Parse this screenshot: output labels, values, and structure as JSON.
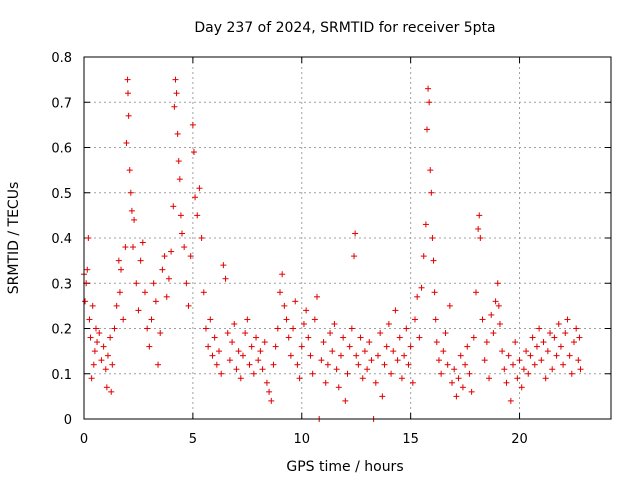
{
  "chart_data": {
    "type": "scatter",
    "title": "Day 237 of 2024, SRMTID for receiver 5pta",
    "xlabel": "GPS time / hours",
    "ylabel": "SRMTID / TECUs",
    "xlim": [
      0,
      24.2
    ],
    "ylim": [
      0,
      0.8
    ],
    "grid": true,
    "marker": "+",
    "marker_color": "#e00000",
    "xticks": [
      0,
      5,
      10,
      15,
      20
    ],
    "xtick_labels": [
      "0",
      "5",
      "10",
      "15",
      "20"
    ],
    "yticks": [
      0,
      0.1,
      0.2,
      0.3,
      0.4,
      0.5,
      0.6,
      0.7,
      0.8
    ],
    "ytick_labels": [
      "0",
      "0.1",
      "0.2",
      "0.3",
      "0.4",
      "0.5",
      "0.6",
      "0.7",
      "0.8"
    ],
    "series": [
      {
        "name": "SRMTID",
        "points": [
          [
            0.0,
            0.32
          ],
          [
            0.05,
            0.26
          ],
          [
            0.1,
            0.3
          ],
          [
            0.15,
            0.33
          ],
          [
            0.2,
            0.4
          ],
          [
            0.25,
            0.22
          ],
          [
            0.3,
            0.18
          ],
          [
            0.35,
            0.09
          ],
          [
            0.4,
            0.25
          ],
          [
            0.45,
            0.12
          ],
          [
            0.5,
            0.15
          ],
          [
            0.55,
            0.2
          ],
          [
            0.6,
            0.17
          ],
          [
            0.7,
            0.19
          ],
          [
            0.8,
            0.13
          ],
          [
            0.9,
            0.16
          ],
          [
            1.0,
            0.11
          ],
          [
            1.05,
            0.07
          ],
          [
            1.1,
            0.14
          ],
          [
            1.2,
            0.18
          ],
          [
            1.25,
            0.06
          ],
          [
            1.3,
            0.12
          ],
          [
            1.4,
            0.2
          ],
          [
            1.5,
            0.25
          ],
          [
            1.6,
            0.35
          ],
          [
            1.65,
            0.28
          ],
          [
            1.7,
            0.33
          ],
          [
            1.8,
            0.22
          ],
          [
            1.9,
            0.38
          ],
          [
            1.95,
            0.61
          ],
          [
            2.0,
            0.75
          ],
          [
            2.02,
            0.72
          ],
          [
            2.05,
            0.67
          ],
          [
            2.1,
            0.55
          ],
          [
            2.15,
            0.5
          ],
          [
            2.2,
            0.46
          ],
          [
            2.25,
            0.38
          ],
          [
            2.3,
            0.44
          ],
          [
            2.4,
            0.3
          ],
          [
            2.5,
            0.24
          ],
          [
            2.6,
            0.35
          ],
          [
            2.7,
            0.39
          ],
          [
            2.8,
            0.28
          ],
          [
            2.9,
            0.2
          ],
          [
            3.0,
            0.16
          ],
          [
            3.1,
            0.22
          ],
          [
            3.2,
            0.3
          ],
          [
            3.3,
            0.26
          ],
          [
            3.4,
            0.12
          ],
          [
            3.5,
            0.19
          ],
          [
            3.6,
            0.33
          ],
          [
            3.7,
            0.36
          ],
          [
            3.8,
            0.27
          ],
          [
            3.9,
            0.31
          ],
          [
            4.0,
            0.37
          ],
          [
            4.1,
            0.47
          ],
          [
            4.15,
            0.69
          ],
          [
            4.2,
            0.75
          ],
          [
            4.25,
            0.72
          ],
          [
            4.3,
            0.63
          ],
          [
            4.35,
            0.57
          ],
          [
            4.4,
            0.53
          ],
          [
            4.45,
            0.45
          ],
          [
            4.5,
            0.41
          ],
          [
            4.6,
            0.38
          ],
          [
            4.7,
            0.3
          ],
          [
            4.8,
            0.25
          ],
          [
            4.9,
            0.36
          ],
          [
            5.0,
            0.65
          ],
          [
            5.05,
            0.59
          ],
          [
            5.1,
            0.49
          ],
          [
            5.2,
            0.45
          ],
          [
            5.3,
            0.51
          ],
          [
            5.4,
            0.4
          ],
          [
            5.5,
            0.28
          ],
          [
            5.6,
            0.2
          ],
          [
            5.7,
            0.16
          ],
          [
            5.8,
            0.22
          ],
          [
            5.9,
            0.14
          ],
          [
            6.0,
            0.18
          ],
          [
            6.1,
            0.12
          ],
          [
            6.2,
            0.15
          ],
          [
            6.3,
            0.1
          ],
          [
            6.4,
            0.34
          ],
          [
            6.5,
            0.31
          ],
          [
            6.6,
            0.19
          ],
          [
            6.7,
            0.13
          ],
          [
            6.8,
            0.17
          ],
          [
            6.9,
            0.21
          ],
          [
            7.0,
            0.11
          ],
          [
            7.1,
            0.15
          ],
          [
            7.2,
            0.09
          ],
          [
            7.3,
            0.14
          ],
          [
            7.4,
            0.19
          ],
          [
            7.5,
            0.22
          ],
          [
            7.6,
            0.12
          ],
          [
            7.7,
            0.16
          ],
          [
            7.8,
            0.1
          ],
          [
            7.9,
            0.18
          ],
          [
            8.0,
            0.13
          ],
          [
            8.1,
            0.15
          ],
          [
            8.2,
            0.11
          ],
          [
            8.3,
            0.17
          ],
          [
            8.4,
            0.08
          ],
          [
            8.5,
            0.06
          ],
          [
            8.6,
            0.04
          ],
          [
            8.7,
            0.12
          ],
          [
            8.8,
            0.16
          ],
          [
            8.9,
            0.2
          ],
          [
            9.0,
            0.28
          ],
          [
            9.1,
            0.32
          ],
          [
            9.2,
            0.25
          ],
          [
            9.3,
            0.22
          ],
          [
            9.4,
            0.18
          ],
          [
            9.5,
            0.14
          ],
          [
            9.6,
            0.2
          ],
          [
            9.7,
            0.26
          ],
          [
            9.8,
            0.12
          ],
          [
            9.9,
            0.09
          ],
          [
            10.0,
            0.16
          ],
          [
            10.1,
            0.21
          ],
          [
            10.2,
            0.24
          ],
          [
            10.3,
            0.18
          ],
          [
            10.4,
            0.14
          ],
          [
            10.5,
            0.1
          ],
          [
            10.6,
            0.22
          ],
          [
            10.7,
            0.27
          ],
          [
            10.8,
            0.0
          ],
          [
            10.9,
            0.13
          ],
          [
            11.0,
            0.17
          ],
          [
            11.1,
            0.08
          ],
          [
            11.2,
            0.12
          ],
          [
            11.3,
            0.19
          ],
          [
            11.4,
            0.15
          ],
          [
            11.5,
            0.21
          ],
          [
            11.6,
            0.11
          ],
          [
            11.7,
            0.07
          ],
          [
            11.8,
            0.14
          ],
          [
            11.9,
            0.18
          ],
          [
            12.0,
            0.04
          ],
          [
            12.1,
            0.1
          ],
          [
            12.2,
            0.16
          ],
          [
            12.3,
            0.2
          ],
          [
            12.4,
            0.36
          ],
          [
            12.45,
            0.41
          ],
          [
            12.5,
            0.14
          ],
          [
            12.6,
            0.12
          ],
          [
            12.7,
            0.18
          ],
          [
            12.8,
            0.09
          ],
          [
            12.9,
            0.15
          ],
          [
            13.0,
            0.11
          ],
          [
            13.1,
            0.17
          ],
          [
            13.2,
            0.13
          ],
          [
            13.3,
            0.0
          ],
          [
            13.4,
            0.08
          ],
          [
            13.5,
            0.14
          ],
          [
            13.6,
            0.19
          ],
          [
            13.7,
            0.05
          ],
          [
            13.8,
            0.12
          ],
          [
            13.9,
            0.16
          ],
          [
            14.0,
            0.21
          ],
          [
            14.1,
            0.1
          ],
          [
            14.2,
            0.15
          ],
          [
            14.3,
            0.24
          ],
          [
            14.4,
            0.13
          ],
          [
            14.5,
            0.18
          ],
          [
            14.6,
            0.09
          ],
          [
            14.7,
            0.14
          ],
          [
            14.8,
            0.2
          ],
          [
            14.9,
            0.12
          ],
          [
            15.0,
            0.16
          ],
          [
            15.1,
            0.08
          ],
          [
            15.2,
            0.22
          ],
          [
            15.3,
            0.27
          ],
          [
            15.4,
            0.18
          ],
          [
            15.5,
            0.29
          ],
          [
            15.6,
            0.36
          ],
          [
            15.7,
            0.43
          ],
          [
            15.75,
            0.64
          ],
          [
            15.8,
            0.73
          ],
          [
            15.85,
            0.7
          ],
          [
            15.9,
            0.55
          ],
          [
            15.95,
            0.5
          ],
          [
            16.0,
            0.4
          ],
          [
            16.05,
            0.35
          ],
          [
            16.1,
            0.28
          ],
          [
            16.15,
            0.22
          ],
          [
            16.2,
            0.17
          ],
          [
            16.3,
            0.13
          ],
          [
            16.4,
            0.1
          ],
          [
            16.5,
            0.15
          ],
          [
            16.6,
            0.19
          ],
          [
            16.7,
            0.12
          ],
          [
            16.8,
            0.25
          ],
          [
            16.9,
            0.08
          ],
          [
            17.0,
            0.11
          ],
          [
            17.1,
            0.05
          ],
          [
            17.2,
            0.09
          ],
          [
            17.3,
            0.14
          ],
          [
            17.4,
            0.07
          ],
          [
            17.5,
            0.12
          ],
          [
            17.6,
            0.16
          ],
          [
            17.7,
            0.1
          ],
          [
            17.8,
            0.06
          ],
          [
            17.9,
            0.18
          ],
          [
            18.0,
            0.28
          ],
          [
            18.1,
            0.42
          ],
          [
            18.15,
            0.45
          ],
          [
            18.2,
            0.4
          ],
          [
            18.3,
            0.22
          ],
          [
            18.4,
            0.13
          ],
          [
            18.5,
            0.17
          ],
          [
            18.6,
            0.09
          ],
          [
            18.7,
            0.23
          ],
          [
            18.8,
            0.19
          ],
          [
            18.9,
            0.26
          ],
          [
            19.0,
            0.3
          ],
          [
            19.05,
            0.25
          ],
          [
            19.1,
            0.21
          ],
          [
            19.2,
            0.15
          ],
          [
            19.3,
            0.11
          ],
          [
            19.4,
            0.08
          ],
          [
            19.5,
            0.14
          ],
          [
            19.6,
            0.04
          ],
          [
            19.7,
            0.12
          ],
          [
            19.8,
            0.17
          ],
          [
            19.9,
            0.09
          ],
          [
            20.0,
            0.13
          ],
          [
            20.1,
            0.07
          ],
          [
            20.2,
            0.11
          ],
          [
            20.3,
            0.15
          ],
          [
            20.4,
            0.1
          ],
          [
            20.5,
            0.14
          ],
          [
            20.6,
            0.18
          ],
          [
            20.7,
            0.12
          ],
          [
            20.8,
            0.16
          ],
          [
            20.9,
            0.2
          ],
          [
            21.0,
            0.13
          ],
          [
            21.1,
            0.17
          ],
          [
            21.2,
            0.09
          ],
          [
            21.3,
            0.15
          ],
          [
            21.4,
            0.19
          ],
          [
            21.5,
            0.11
          ],
          [
            21.6,
            0.18
          ],
          [
            21.7,
            0.14
          ],
          [
            21.8,
            0.21
          ],
          [
            21.9,
            0.16
          ],
          [
            22.0,
            0.12
          ],
          [
            22.1,
            0.19
          ],
          [
            22.2,
            0.22
          ],
          [
            22.3,
            0.14
          ],
          [
            22.4,
            0.1
          ],
          [
            22.5,
            0.17
          ],
          [
            22.6,
            0.2
          ],
          [
            22.7,
            0.13
          ],
          [
            22.75,
            0.18
          ],
          [
            22.8,
            0.11
          ]
        ]
      }
    ]
  }
}
